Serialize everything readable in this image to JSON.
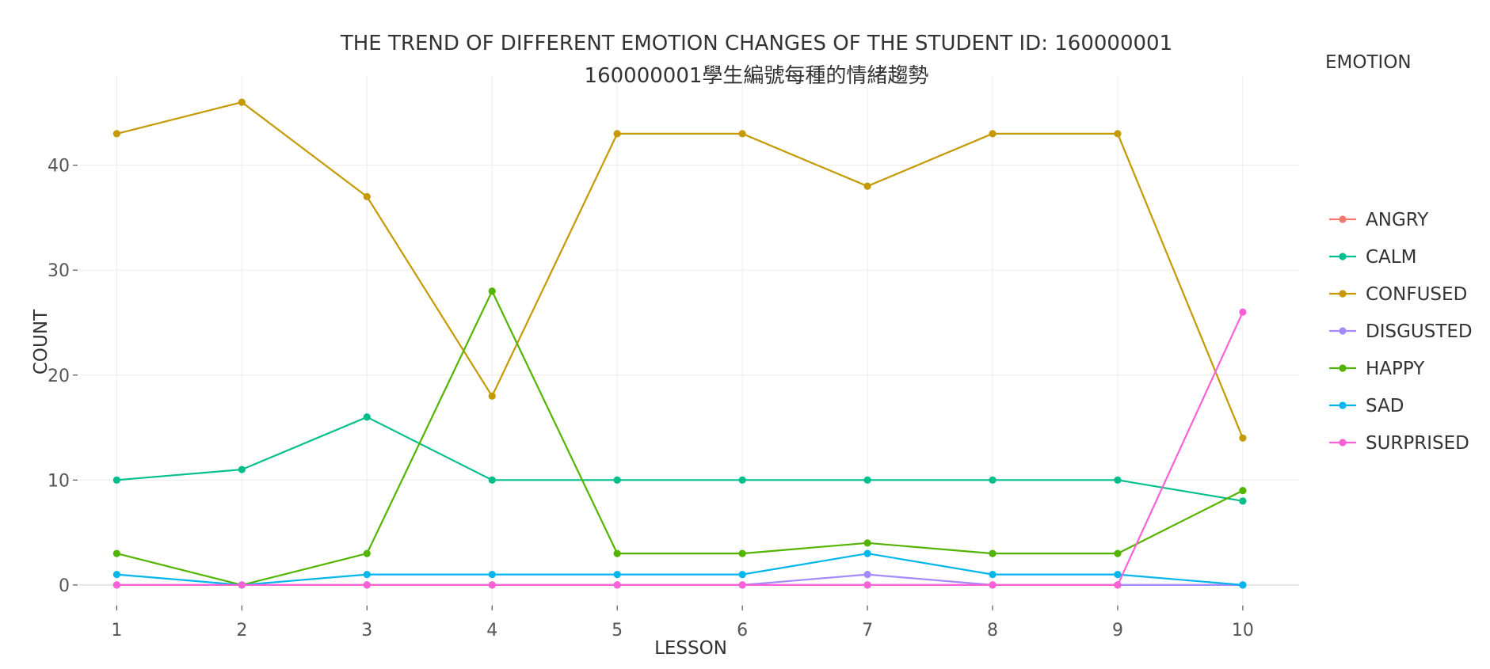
{
  "chart_data": {
    "type": "line",
    "title": "THE TREND OF DIFFERENT EMOTION CHANGES OF THE STUDENT ID: 160000001",
    "subtitle": "160000001學生編號每種的情緒趨勢",
    "xlabel": "LESSON",
    "ylabel": "COUNT",
    "x": [
      1,
      2,
      3,
      4,
      5,
      6,
      7,
      8,
      9,
      10
    ],
    "xlim": [
      0.7,
      10.45
    ],
    "ylim": [
      -2.5,
      48.5
    ],
    "yticks": [
      0,
      10,
      20,
      30,
      40
    ],
    "grid": true,
    "legend": {
      "title": "EMOTION",
      "position": "right"
    },
    "series": [
      {
        "name": "ANGRY",
        "color": "#F8766D",
        "values": [
          0,
          0,
          0,
          0,
          0,
          0,
          0,
          0,
          0,
          0
        ]
      },
      {
        "name": "CALM",
        "color": "#00BF8C",
        "values": [
          10,
          11,
          16,
          10,
          10,
          10,
          10,
          10,
          10,
          8
        ]
      },
      {
        "name": "CONFUSED",
        "color": "#C49A00",
        "values": [
          43,
          46,
          37,
          18,
          43,
          43,
          38,
          43,
          43,
          14
        ]
      },
      {
        "name": "DISGUSTED",
        "color": "#A58AFF",
        "values": [
          0,
          0,
          0,
          0,
          0,
          0,
          1,
          0,
          0,
          0
        ]
      },
      {
        "name": "HAPPY",
        "color": "#53B400",
        "values": [
          3,
          0,
          3,
          28,
          3,
          3,
          4,
          3,
          3,
          9
        ]
      },
      {
        "name": "SAD",
        "color": "#00B6EB",
        "values": [
          1,
          0,
          1,
          1,
          1,
          1,
          3,
          1,
          1,
          0
        ]
      },
      {
        "name": "SURPRISED",
        "color": "#FB61D7",
        "values": [
          0,
          0,
          0,
          0,
          0,
          0,
          0,
          0,
          0,
          26
        ]
      }
    ]
  }
}
